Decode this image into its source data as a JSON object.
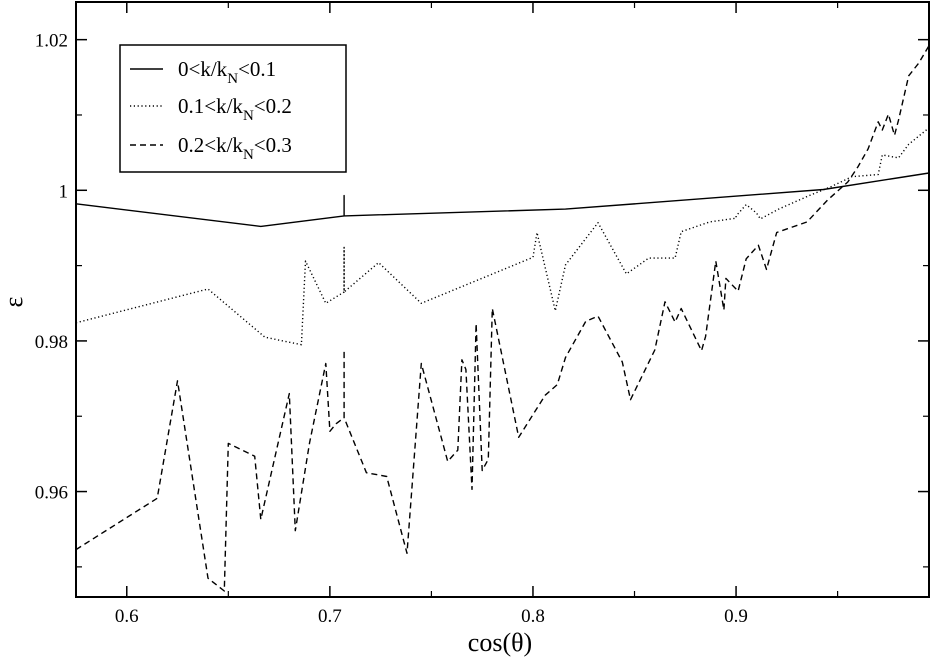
{
  "chart_data": {
    "type": "line",
    "xlabel": "cos(θ)",
    "ylabel": "ε",
    "xlim": [
      0.575,
      0.995
    ],
    "ylim": [
      0.946,
      1.025
    ],
    "xticks": [
      "0.6",
      "0.7",
      "0.8",
      "0.9"
    ],
    "yticks": [
      "0.96",
      "0.98",
      "1",
      "1.02"
    ],
    "legend_position": "top-left",
    "series": [
      {
        "name": "0<k/k_N<0.1",
        "legend": {
          "a": "0<k/k",
          "sub": "N",
          "b": "<0.1"
        },
        "style": "solid",
        "x": [
          0.575,
          0.666,
          0.707,
          0.707,
          0.707,
          0.707,
          0.816,
          0.943,
          0.995
        ],
        "y": [
          0.9982,
          0.9952,
          0.9966,
          0.9993,
          0.9966,
          0.9966,
          0.9975,
          1.0001,
          1.0023
        ]
      },
      {
        "name": "0.1<k/k_N<0.2",
        "legend": {
          "a": "0.1<k/k",
          "sub": "N",
          "b": "<0.2"
        },
        "style": "dotted",
        "x": [
          0.575,
          0.64,
          0.668,
          0.686,
          0.688,
          0.698,
          0.707,
          0.707,
          0.707,
          0.707,
          0.724,
          0.745,
          0.8,
          0.802,
          0.811,
          0.816,
          0.832,
          0.846,
          0.857,
          0.87,
          0.873,
          0.887,
          0.9,
          0.9,
          0.905,
          0.91,
          0.912,
          0.921,
          0.936,
          0.947,
          0.957,
          0.97,
          0.972,
          0.98,
          0.985,
          0.99,
          0.995
        ],
        "y": [
          0.9824,
          0.9869,
          0.9805,
          0.9795,
          0.9906,
          0.985,
          0.9865,
          0.9924,
          0.9865,
          0.9865,
          0.9904,
          0.985,
          0.9911,
          0.9944,
          0.984,
          0.9901,
          0.9957,
          0.9889,
          0.991,
          0.991,
          0.9945,
          0.9958,
          0.9963,
          0.9966,
          0.9981,
          0.997,
          0.9962,
          0.9975,
          0.9993,
          1.0005,
          1.0018,
          1.0021,
          1.0047,
          1.0043,
          1.0061,
          1.0072,
          1.0083
        ]
      },
      {
        "name": "0.2<k/k_N<0.3",
        "legend": {
          "a": "0.2<k/k",
          "sub": "N",
          "b": "<0.3"
        },
        "style": "dashed",
        "x": [
          0.575,
          0.615,
          0.625,
          0.64,
          0.648,
          0.65,
          0.663,
          0.666,
          0.68,
          0.683,
          0.69,
          0.698,
          0.7,
          0.703,
          0.707,
          0.707,
          0.707,
          0.718,
          0.728,
          0.738,
          0.745,
          0.758,
          0.763,
          0.765,
          0.767,
          0.77,
          0.772,
          0.775,
          0.778,
          0.78,
          0.793,
          0.806,
          0.812,
          0.816,
          0.826,
          0.832,
          0.844,
          0.848,
          0.86,
          0.865,
          0.87,
          0.873,
          0.883,
          0.885,
          0.89,
          0.894,
          0.895,
          0.901,
          0.905,
          0.911,
          0.915,
          0.92,
          0.935,
          0.945,
          0.955,
          0.96,
          0.965,
          0.97,
          0.972,
          0.975,
          0.978,
          0.98,
          0.985,
          0.99,
          0.995
        ],
        "y": [
          0.9523,
          0.9591,
          0.9747,
          0.9485,
          0.9468,
          0.9664,
          0.9647,
          0.9563,
          0.973,
          0.9548,
          0.9665,
          0.977,
          0.968,
          0.969,
          0.9698,
          0.9788,
          0.9698,
          0.9625,
          0.962,
          0.9518,
          0.977,
          0.964,
          0.9655,
          0.9775,
          0.9762,
          0.9603,
          0.9823,
          0.9628,
          0.9643,
          0.9843,
          0.9672,
          0.9728,
          0.9742,
          0.9778,
          0.9826,
          0.9833,
          0.9772,
          0.9722,
          0.9788,
          0.9852,
          0.9825,
          0.9843,
          0.9787,
          0.9806,
          0.9906,
          0.9841,
          0.9883,
          0.9866,
          0.9909,
          0.9927,
          0.9895,
          0.9944,
          0.9958,
          0.9987,
          1.0011,
          1.0031,
          1.0055,
          1.0091,
          1.008,
          1.0101,
          1.0073,
          1.0093,
          1.0152,
          1.0169,
          1.0192
        ]
      }
    ]
  }
}
